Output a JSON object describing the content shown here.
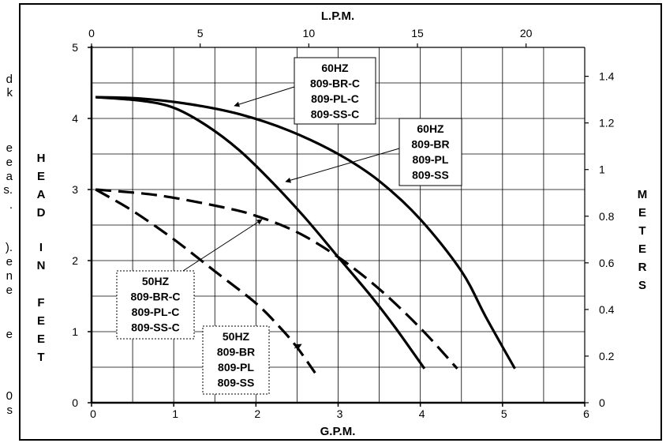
{
  "left_fragment": [
    "d",
    "k",
    "e",
    "e",
    "a",
    "s.",
    ".",
    ").",
    "e",
    "n",
    "e",
    "e",
    "0",
    "s"
  ],
  "chart_data": {
    "type": "line",
    "xlabel": "G.P.M.",
    "x2label": "L.P.M.",
    "ylabel": "HEAD IN FEET",
    "y2label": "METERS",
    "xlim": [
      0,
      6
    ],
    "ylim": [
      0,
      5
    ],
    "x2lim": [
      0,
      22.7
    ],
    "y2lim": [
      0,
      1.524
    ],
    "xticks": [
      "0",
      "1",
      "2",
      "3",
      "4",
      "5",
      "6"
    ],
    "yticks": [
      "0",
      "1",
      "2",
      "3",
      "4",
      "5"
    ],
    "x2ticks": [
      "0",
      "5",
      "10",
      "15",
      "20"
    ],
    "x2tick_values": [
      0,
      5,
      10,
      15,
      20
    ],
    "y2ticks": [
      "0",
      "0.2",
      "0.4",
      "0.6",
      "0.8",
      "1",
      "1.2",
      "1.4"
    ],
    "y2tick_values": [
      0,
      0.2,
      0.4,
      0.6,
      0.8,
      1.0,
      1.2,
      1.4
    ],
    "grid": true,
    "series": [
      {
        "name": "60HZ 809-BR-C 809-PL-C 809-SS-C",
        "style": "solid",
        "x": [
          0.05,
          0.6,
          1.2,
          1.8,
          2.4,
          3.0,
          3.5,
          4.0,
          4.5,
          4.8,
          5.15
        ],
        "y": [
          4.3,
          4.28,
          4.2,
          4.06,
          3.83,
          3.5,
          3.12,
          2.58,
          1.85,
          1.2,
          0.48
        ]
      },
      {
        "name": "60HZ 809-BR 809-PL 809-SS",
        "style": "solid",
        "x": [
          0.05,
          0.6,
          1.0,
          1.4,
          1.8,
          2.2,
          2.6,
          3.0,
          3.4,
          3.7,
          4.05
        ],
        "y": [
          4.3,
          4.25,
          4.15,
          3.9,
          3.55,
          3.1,
          2.6,
          2.05,
          1.5,
          1.05,
          0.48
        ]
      },
      {
        "name": "50HZ 809-BR-C 809-PL-C 809-SS-C",
        "style": "dashed",
        "x": [
          0.05,
          0.8,
          1.6,
          2.0,
          2.5,
          3.0,
          3.5,
          4.0,
          4.45
        ],
        "y": [
          3.0,
          2.92,
          2.75,
          2.63,
          2.4,
          2.05,
          1.6,
          1.05,
          0.48
        ]
      },
      {
        "name": "50HZ 809-BR 809-PL 809-SS",
        "style": "dashed",
        "x": [
          0.05,
          0.5,
          1.0,
          1.5,
          2.0,
          2.3,
          2.5,
          2.72
        ],
        "y": [
          3.0,
          2.7,
          2.3,
          1.85,
          1.4,
          1.05,
          0.78,
          0.42
        ]
      }
    ],
    "annotations": [
      {
        "lines": [
          "60HZ",
          "809-BR-C",
          "809-PL-C",
          "809-SS-C"
        ],
        "border": "solid"
      },
      {
        "lines": [
          "60HZ",
          "809-BR",
          "809-PL",
          "809-SS"
        ],
        "border": "solid"
      },
      {
        "lines": [
          "50HZ",
          "809-BR-C",
          "809-PL-C",
          "809-SS-C"
        ],
        "border": "dotted"
      },
      {
        "lines": [
          "50HZ",
          "809-BR",
          "809-PL",
          "809-SS"
        ],
        "border": "dotted"
      }
    ]
  }
}
